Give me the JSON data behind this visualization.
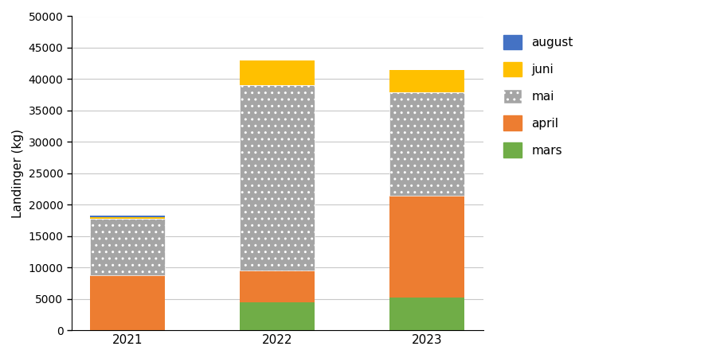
{
  "years": [
    "2021",
    "2022",
    "2023"
  ],
  "months": [
    "mars",
    "april",
    "mai",
    "juni",
    "august"
  ],
  "colors": {
    "mars": "#70AD47",
    "april": "#ED7D31",
    "mai": "#A5A5A5",
    "juni": "#FFC000",
    "august": "#4472C4"
  },
  "hatch": {
    "mars": "",
    "april": "",
    "mai": "..",
    "juni": "",
    "august": ""
  },
  "values": {
    "mars": [
      0,
      4500,
      5200
    ],
    "april": [
      8800,
      5000,
      16200
    ],
    "mai": [
      9000,
      29500,
      16500
    ],
    "juni": [
      200,
      4000,
      3500
    ],
    "august": [
      200,
      0,
      0
    ]
  },
  "ylabel": "Landinger (kg)",
  "ylim": [
    0,
    50000
  ],
  "yticks": [
    0,
    5000,
    10000,
    15000,
    20000,
    25000,
    30000,
    35000,
    40000,
    45000,
    50000
  ],
  "background_color": "#ffffff",
  "grid_color": "#c8c8c8",
  "bar_width": 0.5,
  "figsize": [
    8.99,
    4.5
  ],
  "dpi": 100
}
